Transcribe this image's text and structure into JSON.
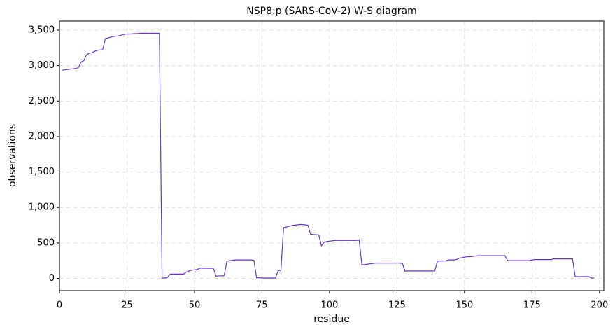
{
  "chart_data": {
    "type": "line",
    "title": "NSP8:p (SARS-CoV-2) W-S diagram",
    "x_label": "residue",
    "y_label": "observations",
    "x": [
      1,
      2,
      3,
      4,
      5,
      6,
      7,
      8,
      9,
      10,
      11,
      12,
      13,
      14,
      15,
      16,
      17,
      18,
      19,
      20,
      21,
      22,
      23,
      24,
      25,
      26,
      27,
      28,
      29,
      30,
      31,
      32,
      33,
      34,
      35,
      36,
      37,
      38,
      39,
      40,
      41,
      42,
      43,
      44,
      45,
      46,
      47,
      48,
      49,
      50,
      51,
      52,
      53,
      54,
      55,
      56,
      57,
      58,
      59,
      60,
      61,
      62,
      63,
      64,
      65,
      66,
      67,
      68,
      69,
      70,
      71,
      72,
      73,
      74,
      75,
      76,
      77,
      78,
      79,
      80,
      81,
      82,
      83,
      84,
      85,
      86,
      87,
      88,
      89,
      90,
      91,
      92,
      93,
      94,
      95,
      96,
      97,
      98,
      99,
      100,
      101,
      102,
      103,
      104,
      105,
      106,
      107,
      108,
      109,
      110,
      111,
      112,
      113,
      114,
      115,
      116,
      117,
      118,
      119,
      120,
      121,
      122,
      123,
      124,
      125,
      126,
      127,
      128,
      129,
      130,
      131,
      132,
      133,
      134,
      135,
      136,
      137,
      138,
      139,
      140,
      141,
      142,
      143,
      144,
      145,
      146,
      147,
      148,
      149,
      150,
      151,
      152,
      153,
      154,
      155,
      156,
      157,
      158,
      159,
      160,
      161,
      162,
      163,
      164,
      165,
      166,
      167,
      168,
      169,
      170,
      171,
      172,
      173,
      174,
      175,
      176,
      177,
      178,
      179,
      180,
      181,
      182,
      183,
      184,
      185,
      186,
      187,
      188,
      189,
      190,
      191,
      192,
      193,
      194,
      195,
      196,
      197,
      198
    ],
    "series": [
      {
        "name": "observations",
        "color": "#6633cc",
        "values": [
          2935,
          2940,
          2945,
          2950,
          2955,
          2960,
          2970,
          3050,
          3070,
          3150,
          3175,
          3180,
          3200,
          3215,
          3220,
          3225,
          3380,
          3390,
          3400,
          3410,
          3415,
          3420,
          3430,
          3440,
          3445,
          3445,
          3448,
          3450,
          3452,
          3455,
          3455,
          3455,
          3455,
          3455,
          3455,
          3455,
          3455,
          5,
          5,
          15,
          60,
          60,
          60,
          60,
          60,
          60,
          90,
          105,
          115,
          120,
          125,
          145,
          143,
          143,
          143,
          143,
          140,
          30,
          35,
          35,
          40,
          240,
          250,
          255,
          260,
          260,
          260,
          260,
          260,
          260,
          260,
          255,
          10,
          10,
          5,
          5,
          5,
          5,
          5,
          5,
          110,
          110,
          715,
          725,
          735,
          745,
          750,
          755,
          760,
          760,
          755,
          750,
          625,
          620,
          615,
          615,
          460,
          510,
          520,
          525,
          530,
          535,
          535,
          535,
          535,
          535,
          535,
          535,
          535,
          535,
          540,
          190,
          195,
          200,
          205,
          210,
          215,
          215,
          215,
          215,
          215,
          215,
          215,
          215,
          215,
          215,
          210,
          100,
          105,
          105,
          105,
          105,
          105,
          105,
          105,
          105,
          105,
          105,
          105,
          245,
          245,
          245,
          245,
          260,
          260,
          260,
          265,
          285,
          290,
          300,
          305,
          305,
          310,
          315,
          320,
          320,
          320,
          320,
          320,
          320,
          320,
          320,
          320,
          320,
          320,
          250,
          250,
          250,
          250,
          250,
          250,
          250,
          250,
          250,
          260,
          265,
          265,
          265,
          265,
          265,
          265,
          265,
          275,
          275,
          275,
          275,
          275,
          275,
          275,
          275,
          25,
          25,
          25,
          25,
          25,
          25,
          5,
          5
        ]
      }
    ],
    "xlim": [
      0,
      201.6
    ],
    "ylim": [
      -173,
      3628
    ],
    "xticks": [
      0,
      25,
      50,
      75,
      100,
      125,
      150,
      175,
      200
    ],
    "yticks": [
      0,
      500,
      {
        "value": 1000,
        "label": "1,000"
      },
      {
        "value": 1500,
        "label": "1,500"
      },
      {
        "value": 2000,
        "label": "2,000"
      },
      {
        "value": 2500,
        "label": "2,500"
      },
      {
        "value": 3000,
        "label": "3,000"
      },
      {
        "value": 3500,
        "label": "3,500"
      }
    ],
    "grid": true
  }
}
